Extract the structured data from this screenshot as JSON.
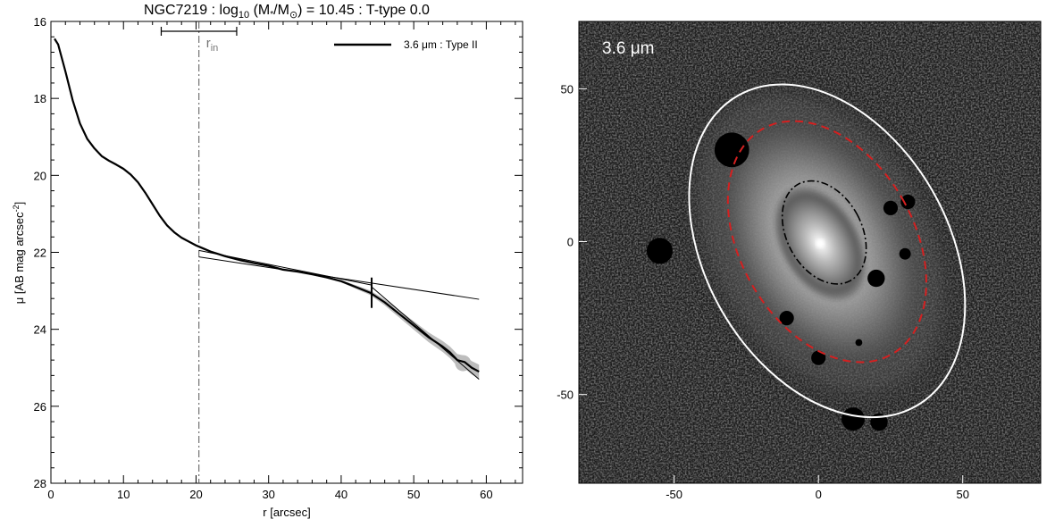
{
  "chart_data": [
    {
      "type": "line",
      "title_parts": {
        "prefix": "NGC7219 : log",
        "sub": "10",
        "mid": " (M",
        "star": "*",
        "slash": "/M",
        "sun": "⊙",
        "suffix": ") = 10.45 : T-type 0.0"
      },
      "xlabel": "r [arcsec]",
      "ylabel_parts": {
        "main": "μ [AB mag arcsec",
        "sup": "-2",
        "end": "]"
      },
      "xlim": [
        0,
        65
      ],
      "ylim": [
        28,
        16
      ],
      "y_inverted": true,
      "xticks": [
        0,
        10,
        20,
        30,
        40,
        50,
        60
      ],
      "yticks": [
        16,
        18,
        20,
        22,
        24,
        26,
        28
      ],
      "legend": {
        "label": "3.6 μm : Type II",
        "position": "top-right"
      },
      "rin_label": {
        "main": "r",
        "sub": "in"
      },
      "r_in": 20.4,
      "r_in_errorbar": [
        15.2,
        25.6
      ],
      "break_marker": {
        "x": 44.2,
        "y": 23.05
      },
      "series": [
        {
          "name": "3.6 μm : Type II",
          "x": [
            0.5,
            1.0,
            2.0,
            3.0,
            4.0,
            5.0,
            6.0,
            7.0,
            8.0,
            9.0,
            10.0,
            11.0,
            12.0,
            13.0,
            14.0,
            15.0,
            16.0,
            17.0,
            18.0,
            19.0,
            20.0,
            21.0,
            22.0,
            24.0,
            26.0,
            28.0,
            30.0,
            32.0,
            34.0,
            36.0,
            38.0,
            40.0,
            42.0,
            44.0,
            46.0,
            48.0,
            50.0,
            52.0,
            54.0,
            55.0,
            56.0,
            57.0,
            58.0,
            59.0
          ],
          "y": [
            16.45,
            16.6,
            17.3,
            18.05,
            18.65,
            19.05,
            19.3,
            19.5,
            19.62,
            19.72,
            19.83,
            19.98,
            20.18,
            20.45,
            20.75,
            21.05,
            21.3,
            21.48,
            21.62,
            21.72,
            21.82,
            21.9,
            21.98,
            22.1,
            22.2,
            22.28,
            22.35,
            22.45,
            22.5,
            22.57,
            22.65,
            22.75,
            22.9,
            23.05,
            23.3,
            23.6,
            23.9,
            24.2,
            24.45,
            24.6,
            24.8,
            24.85,
            25.0,
            25.1
          ]
        }
      ],
      "fits": [
        {
          "name": "",
          "x": [
            20.4,
            44.2
          ],
          "y": [
            21.95,
            22.85
          ]
        },
        {
          "name": "",
          "x": [
            20.4,
            59.0
          ],
          "y": [
            22.12,
            23.22
          ]
        },
        {
          "name": "",
          "x": [
            44.2,
            59.0
          ],
          "y": [
            22.9,
            25.3
          ]
        }
      ],
      "grid": false
    },
    {
      "type": "image",
      "label": "3.6 μm",
      "xlim": [
        -83,
        77
      ],
      "ylim": [
        -79,
        72
      ],
      "xticks": [
        -50,
        0,
        50
      ],
      "yticks": [
        -50,
        0,
        50
      ],
      "center": [
        0,
        0
      ],
      "ellipses": [
        {
          "name": "outer",
          "color": "#ffffff",
          "style": "solid",
          "cx": 3,
          "cy": -3,
          "rx": 42,
          "ry": 62,
          "angle_deg": -30
        },
        {
          "name": "r_in",
          "color": "#d42020",
          "style": "dashed",
          "cx": 3,
          "cy": 0,
          "rx": 30,
          "ry": 45,
          "angle_deg": -30
        },
        {
          "name": "inner",
          "color": "#000000",
          "style": "dashdot",
          "cx": 2,
          "cy": 3,
          "rx": 13,
          "ry": 19,
          "angle_deg": -28
        }
      ],
      "masks": [
        {
          "x": -30,
          "y": 30,
          "r": 6
        },
        {
          "x": 25,
          "y": 11,
          "r": 2.5
        },
        {
          "x": 31,
          "y": 13,
          "r": 2.5
        },
        {
          "x": 30,
          "y": -4,
          "r": 2
        },
        {
          "x": 20,
          "y": -12,
          "r": 3
        },
        {
          "x": -11,
          "y": -25,
          "r": 2.5
        },
        {
          "x": 14,
          "y": -33,
          "r": 1.2
        },
        {
          "x": 0,
          "y": -38,
          "r": 2.5
        },
        {
          "x": -55,
          "y": -3,
          "r": 4.5
        },
        {
          "x": 12,
          "y": -58,
          "r": 4
        },
        {
          "x": 21,
          "y": -59,
          "r": 3
        }
      ]
    }
  ]
}
